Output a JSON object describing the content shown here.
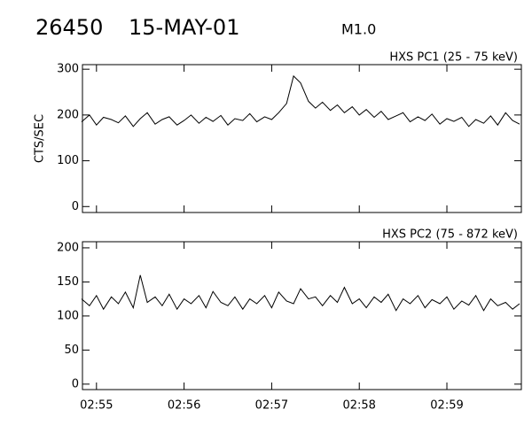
{
  "header": {
    "id": "26450",
    "date": "15-MAY-01",
    "flare_class": "M1.0"
  },
  "chart_data": [
    {
      "type": "line",
      "ylabel": "CTS/SEC",
      "x": [
        54.83,
        54.92,
        55.0,
        55.08,
        55.17,
        55.25,
        55.33,
        55.42,
        55.5,
        55.58,
        55.67,
        55.75,
        55.83,
        55.92,
        56.0,
        56.08,
        56.17,
        56.25,
        56.33,
        56.42,
        56.5,
        56.58,
        56.67,
        56.75,
        56.83,
        56.92,
        57.0,
        57.08,
        57.17,
        57.25,
        57.33,
        57.42,
        57.5,
        57.58,
        57.67,
        57.75,
        57.83,
        57.92,
        58.0,
        58.08,
        58.17,
        58.25,
        58.33,
        58.42,
        58.5,
        58.58,
        58.67,
        58.75,
        58.83,
        58.92,
        59.0,
        59.08,
        59.17,
        59.25,
        59.33,
        59.42,
        59.5,
        59.58,
        59.67,
        59.75,
        59.83
      ],
      "series": [
        {
          "name": "HXS PC1 (25 - 75 keV)",
          "color": "#000000",
          "values": [
            185,
            200,
            178,
            195,
            190,
            183,
            198,
            175,
            192,
            205,
            180,
            190,
            196,
            178,
            188,
            200,
            182,
            195,
            186,
            199,
            178,
            192,
            188,
            203,
            185,
            196,
            190,
            205,
            225,
            285,
            270,
            230,
            215,
            228,
            210,
            222,
            205,
            218,
            200,
            212,
            195,
            208,
            190,
            198,
            205,
            185,
            196,
            188,
            202,
            180,
            192,
            186,
            195,
            175,
            190,
            182,
            198,
            178,
            205,
            188,
            180
          ]
        }
      ],
      "xlim": [
        54.84,
        59.85
      ],
      "xticks": [
        55,
        56,
        57,
        58,
        59
      ],
      "ylim": [
        -13,
        310
      ],
      "yticks": [
        0,
        100,
        200,
        300
      ]
    },
    {
      "type": "line",
      "x": [
        54.83,
        54.92,
        55.0,
        55.08,
        55.17,
        55.25,
        55.33,
        55.42,
        55.5,
        55.58,
        55.67,
        55.75,
        55.83,
        55.92,
        56.0,
        56.08,
        56.17,
        56.25,
        56.33,
        56.42,
        56.5,
        56.58,
        56.67,
        56.75,
        56.83,
        56.92,
        57.0,
        57.08,
        57.17,
        57.25,
        57.33,
        57.42,
        57.5,
        57.58,
        57.67,
        57.75,
        57.83,
        57.92,
        58.0,
        58.08,
        58.17,
        58.25,
        58.33,
        58.42,
        58.5,
        58.58,
        58.67,
        58.75,
        58.83,
        58.92,
        59.0,
        59.08,
        59.17,
        59.25,
        59.33,
        59.42,
        59.5,
        59.58,
        59.67,
        59.75,
        59.83
      ],
      "series": [
        {
          "name": "HXS PC2 (75 - 872 keV)",
          "color": "#000000",
          "values": [
            125,
            115,
            130,
            110,
            128,
            118,
            135,
            112,
            160,
            120,
            128,
            115,
            132,
            110,
            125,
            118,
            130,
            112,
            136,
            120,
            115,
            128,
            110,
            125,
            118,
            130,
            112,
            135,
            122,
            118,
            140,
            125,
            128,
            115,
            130,
            120,
            142,
            118,
            125,
            112,
            128,
            120,
            132,
            108,
            125,
            118,
            130,
            112,
            124,
            118,
            128,
            110,
            122,
            116,
            130,
            108,
            125,
            115,
            120,
            110,
            118
          ]
        }
      ],
      "xlim": [
        54.84,
        59.85
      ],
      "xticks": [
        {
          "value": 55,
          "label": "02:55"
        },
        {
          "value": 56,
          "label": "02:56"
        },
        {
          "value": 57,
          "label": "02:57"
        },
        {
          "value": 58,
          "label": "02:58"
        },
        {
          "value": 59,
          "label": "02:59"
        }
      ],
      "ylim": [
        -8,
        209
      ],
      "yticks": [
        0,
        50,
        100,
        150,
        200
      ]
    }
  ]
}
